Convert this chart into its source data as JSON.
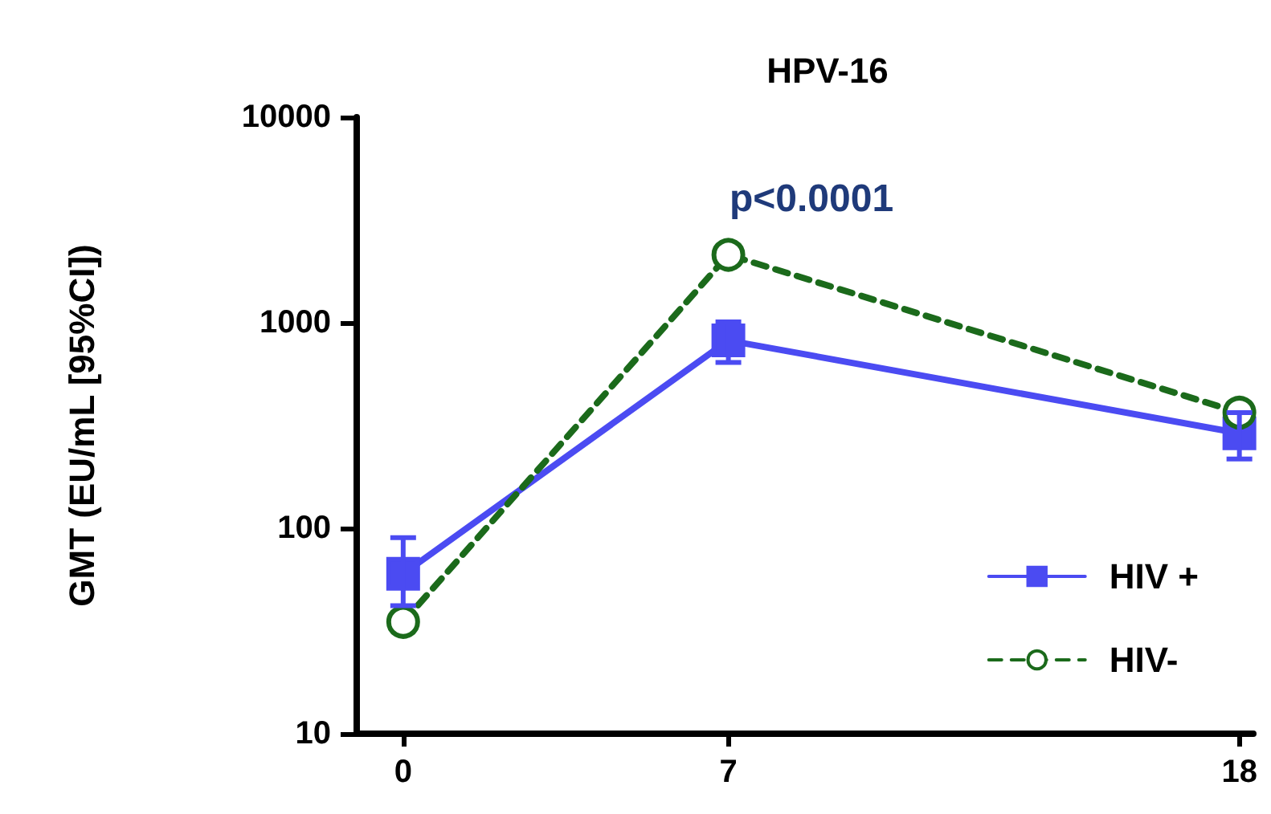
{
  "chart_data": {
    "type": "line",
    "title": "HPV-16",
    "ylabel": "GMT (EU/mL [95%CI])",
    "x": [
      0,
      7,
      18
    ],
    "xlim": [
      -1,
      18.3
    ],
    "xticks": [
      0,
      7,
      18
    ],
    "ylim": [
      10,
      10000
    ],
    "yticks": [
      10,
      100,
      1000,
      10000
    ],
    "log": true,
    "grid": false,
    "legend": "bottom right",
    "series": [
      {
        "name": "HIV +",
        "color": "#4b4bf2",
        "values": [
          60,
          820,
          290
        ],
        "errors": [
          [
            42,
            90
          ],
          [
            640,
            1010
          ],
          [
            217,
            365
          ]
        ],
        "marker": "square",
        "line_style": "solid"
      },
      {
        "name": "HIV-",
        "color": "#1b6a1b",
        "values": [
          35,
          2140,
          365
        ],
        "marker": "circle",
        "line_style": "dashed"
      }
    ],
    "annotations": [
      "p<0.0001"
    ]
  }
}
